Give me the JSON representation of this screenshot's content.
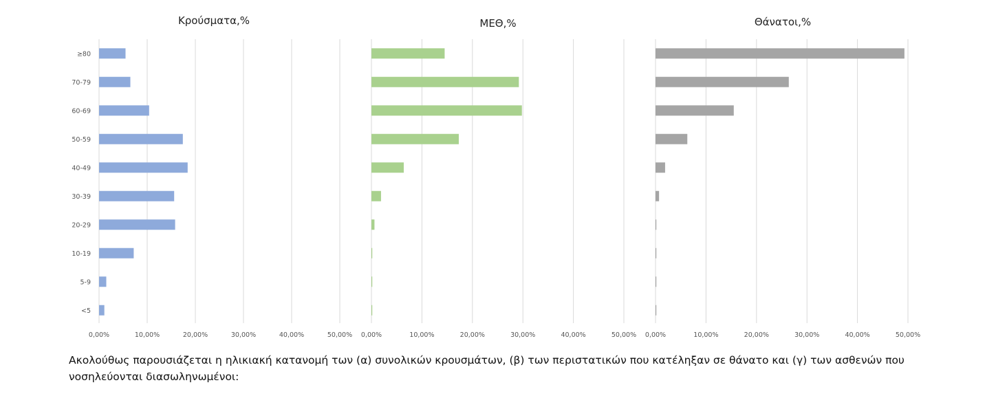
{
  "chart_data": [
    {
      "type": "bar",
      "orientation": "horizontal",
      "title": "Κρούσματα,%",
      "categories": [
        "≥80",
        "70-79",
        "60-69",
        "50-59",
        "40-49",
        "30-39",
        "20-29",
        "10-19",
        "5-9",
        "<5"
      ],
      "values": [
        5.5,
        6.5,
        10.4,
        17.4,
        18.4,
        15.6,
        15.8,
        7.2,
        1.5,
        1.1
      ],
      "xlim": [
        0,
        50
      ],
      "xticks": [
        "0,00%",
        "10,00%",
        "20,00%",
        "30,00%",
        "40,00%",
        "50,00%"
      ],
      "grid": true,
      "color": "#8eaadb"
    },
    {
      "type": "bar",
      "orientation": "horizontal",
      "title": "ΜΕΘ,%",
      "categories": [
        "≥80",
        "70-79",
        "60-69",
        "50-59",
        "40-49",
        "30-39",
        "20-29",
        "10-19",
        "5-9",
        "<5"
      ],
      "values": [
        14.5,
        29.2,
        29.8,
        17.3,
        6.4,
        1.9,
        0.6,
        0.15,
        0.15,
        0.15
      ],
      "xlim": [
        0,
        50
      ],
      "xticks": [
        "0,00%",
        "10,00%",
        "20,00%",
        "30,00%",
        "40,00%",
        "50,00%"
      ],
      "grid": true,
      "color": "#a9d18e"
    },
    {
      "type": "bar",
      "orientation": "horizontal",
      "title": "Θάνατοι,%",
      "categories": [
        "≥80",
        "70-79",
        "60-69",
        "50-59",
        "40-49",
        "30-39",
        "20-29",
        "10-19",
        "5-9",
        "<5"
      ],
      "values": [
        49.3,
        26.4,
        15.5,
        6.3,
        1.9,
        0.7,
        0.1,
        0.1,
        0,
        0.1
      ],
      "xlim": [
        0,
        50
      ],
      "xticks": [
        "0,00%",
        "10,00%",
        "20,00%",
        "30,00%",
        "40,00%",
        "50,00%"
      ],
      "grid": true,
      "color": "#a5a5a5"
    }
  ],
  "caption": "Ακολούθως παρουσιάζεται η ηλικιακή κατανομή των (α) συνολικών κρουσμάτων, (β) των περιστατικών που κατέληξαν σε θάνατο και (γ) των ασθενών που νοσηλεύονται διασωληνωμένοι:"
}
